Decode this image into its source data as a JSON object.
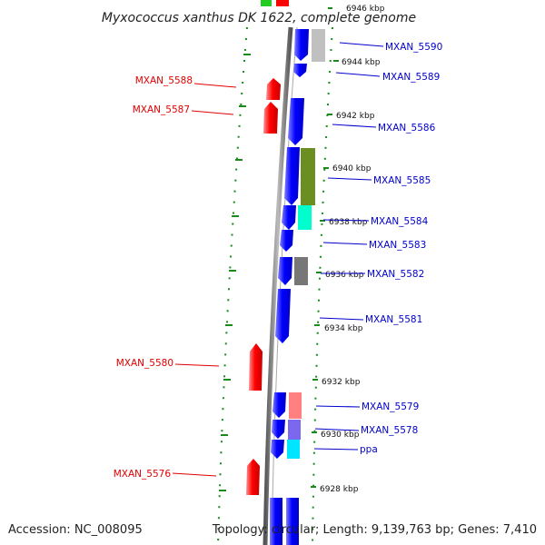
{
  "header": {
    "title": "Myxococcus xanthus DK 1622, complete genome"
  },
  "footer": {
    "accession": "Accession: NC_008095",
    "summary": "Topology: circular; Length: 9,139,763 bp; Genes: 7,410"
  },
  "axis": {
    "ticks": [
      "6946 kbp",
      "6944 kbp",
      "6942 kbp",
      "6940 kbp",
      "6938 kbp",
      "6936 kbp",
      "6934 kbp",
      "6932 kbp",
      "6930 kbp",
      "6928 kbp"
    ]
  },
  "genes": {
    "left": [
      "MXAN_5588",
      "MXAN_5587",
      "MXAN_5580",
      "MXAN_5576"
    ],
    "right": [
      "MXAN_5590",
      "MXAN_5589",
      "MXAN_5586",
      "MXAN_5585",
      "MXAN_5584",
      "MXAN_5583",
      "MXAN_5582",
      "MXAN_5581",
      "MXAN_5579",
      "MXAN_5578",
      "ppa"
    ]
  },
  "colors": {
    "forward_strand": "#ff0000",
    "reverse_strand": "#0000ff",
    "label_forward": "#e00000",
    "label_reverse": "#0000cc",
    "backbone": "#888888",
    "guide_dots": "#1a8a1a",
    "cog_colors": [
      "#c0c0c0",
      "#6b8e23",
      "#00ffcc",
      "#777777",
      "#ff8080",
      "#7b68ee",
      "#00e5ff",
      "#22cc22"
    ]
  }
}
